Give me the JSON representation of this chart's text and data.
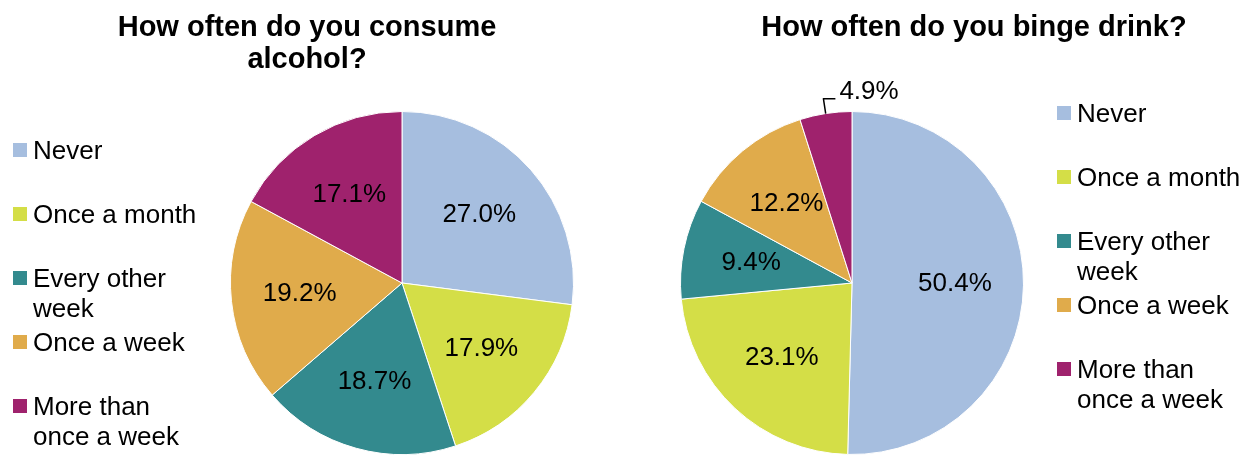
{
  "chart_data": [
    {
      "type": "pie",
      "title": "How often do you consume alcohol?",
      "categories": [
        "Never",
        "Once a month",
        "Every other week",
        "Once a week",
        "More than once a week"
      ],
      "values": [
        27.0,
        17.9,
        18.7,
        19.2,
        17.1
      ],
      "colors": [
        "#a6bedf",
        "#d4de47",
        "#338a8e",
        "#e0ab4b",
        "#9f226d"
      ],
      "value_labels": [
        "27.0%",
        "17.9%",
        "18.7%",
        "19.2%",
        "17.1%"
      ],
      "legend": "left"
    },
    {
      "type": "pie",
      "title": "How often do you binge drink?",
      "categories": [
        "Never",
        "Once a month",
        "Every other week",
        "Once a week",
        "More than once a week"
      ],
      "values": [
        50.4,
        23.1,
        9.4,
        12.2,
        4.9
      ],
      "colors": [
        "#a6bedf",
        "#d4de47",
        "#338a8e",
        "#e0ab4b",
        "#9f226d"
      ],
      "value_labels": [
        "50.4%",
        "23.1%",
        "9.4%",
        "12.2%",
        "4.9%"
      ],
      "legend": "right"
    }
  ]
}
